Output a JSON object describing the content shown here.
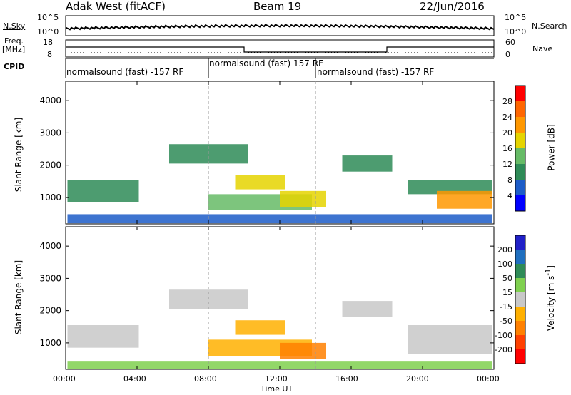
{
  "header": {
    "station": "Adak West (fitACF)",
    "beam": "Beam 19",
    "date": "22/Jun/2016"
  },
  "noise_panel": {
    "left_label": "N.Sky",
    "right_label": "N.Search",
    "left_ticks": [
      "10^5",
      "10^0"
    ],
    "right_ticks": [
      "10^5",
      "10^0"
    ]
  },
  "freq_panel": {
    "left_label": "Freq.",
    "left_unit": "[MHz]",
    "left_ticks": [
      "18",
      "8"
    ],
    "right_label": "Nave",
    "right_ticks": [
      "60",
      "0"
    ]
  },
  "cpid_panel": {
    "label": "CPID",
    "segments": [
      {
        "text": "normalsound (fast) -157 RF",
        "start_hour": 0
      },
      {
        "text": "normalsound (fast) 157 RF",
        "start_hour": 8
      },
      {
        "text": "normalsound (fast) -157 RF",
        "start_hour": 14
      }
    ]
  },
  "x_axis": {
    "label": "Time UT",
    "ticks": [
      "00:00",
      "04:00",
      "08:00",
      "12:00",
      "16:00",
      "20:00",
      "00:00"
    ],
    "range_hours": [
      0,
      24
    ]
  },
  "chart_data": [
    {
      "type": "heatmap",
      "title": "",
      "ylabel": "Slant Range [km]",
      "ylim": [
        180,
        4600
      ],
      "yticks": [
        1000,
        2000,
        3000,
        4000
      ],
      "colorbar": {
        "label": "Power [dB]",
        "levels": [
          "4",
          "8",
          "12",
          "16",
          "20",
          "24",
          "28"
        ],
        "colors": [
          "#0000ff",
          "#1c5cc8",
          "#2e8b57",
          "#66bb66",
          "#e5d400",
          "#ff9800",
          "#ff6600",
          "#ff0000"
        ]
      },
      "regions": [
        {
          "t0": 0.1,
          "t1": 4.1,
          "r0": 850,
          "r1": 1550,
          "level": 8
        },
        {
          "t0": 5.8,
          "t1": 10.2,
          "r0": 2050,
          "r1": 2650,
          "level": 8
        },
        {
          "t0": 8.0,
          "t1": 13.8,
          "r0": 600,
          "r1": 1100,
          "level": 12
        },
        {
          "t0": 9.5,
          "t1": 12.3,
          "r0": 1250,
          "r1": 1700,
          "level": 16
        },
        {
          "t0": 12.0,
          "t1": 14.6,
          "r0": 700,
          "r1": 1200,
          "level": 16
        },
        {
          "t0": 15.5,
          "t1": 18.3,
          "r0": 1800,
          "r1": 2300,
          "level": 8
        },
        {
          "t0": 19.2,
          "t1": 23.9,
          "r0": 1100,
          "r1": 1550,
          "level": 8
        },
        {
          "t0": 20.8,
          "t1": 23.9,
          "r0": 650,
          "r1": 1200,
          "level": 20
        },
        {
          "t0": 0.1,
          "t1": 23.9,
          "r0": 200,
          "r1": 480,
          "level": 4
        }
      ]
    },
    {
      "type": "heatmap",
      "title": "",
      "ylabel": "Slant Range [km]",
      "ylim": [
        180,
        4600
      ],
      "yticks": [
        1000,
        2000,
        3000,
        4000
      ],
      "colorbar": {
        "label": "Velocity [m s^-1]",
        "levels": [
          "200",
          "100",
          "50",
          "15",
          "-15",
          "-50",
          "-100",
          "-200"
        ],
        "colors": [
          "#2020c8",
          "#1f6fbf",
          "#2e8b57",
          "#7fd04f",
          "#c8c8c8",
          "#ffb000",
          "#ff8000",
          "#ff4000",
          "#ff0000"
        ]
      },
      "regions": [
        {
          "t0": 0.1,
          "t1": 4.1,
          "r0": 850,
          "r1": 1550,
          "value": 0
        },
        {
          "t0": 5.8,
          "t1": 10.2,
          "r0": 2050,
          "r1": 2650,
          "value": 0
        },
        {
          "t0": 8.0,
          "t1": 13.8,
          "r0": 600,
          "r1": 1100,
          "value": -30
        },
        {
          "t0": 9.5,
          "t1": 12.3,
          "r0": 1250,
          "r1": 1700,
          "value": -40
        },
        {
          "t0": 12.0,
          "t1": 14.6,
          "r0": 500,
          "r1": 1000,
          "value": -70
        },
        {
          "t0": 15.5,
          "t1": 18.3,
          "r0": 1800,
          "r1": 2300,
          "value": 0
        },
        {
          "t0": 19.2,
          "t1": 23.9,
          "r0": 650,
          "r1": 1550,
          "value": 0
        },
        {
          "t0": 0.1,
          "t1": 23.9,
          "r0": 200,
          "r1": 420,
          "value": 25
        }
      ]
    }
  ]
}
